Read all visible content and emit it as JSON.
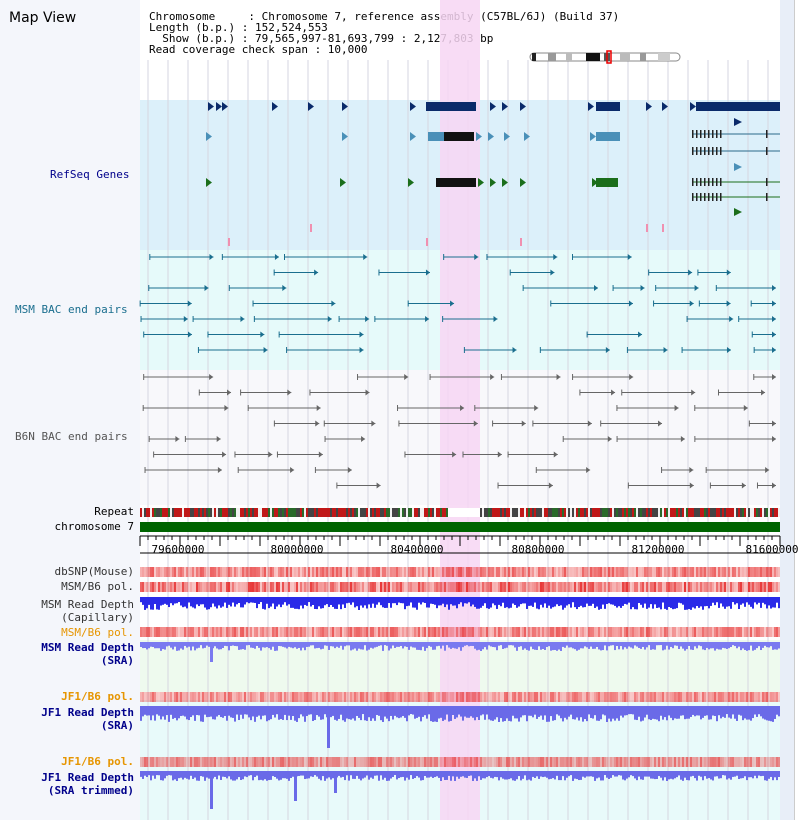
{
  "page": {
    "title": "Map View"
  },
  "header": {
    "lines": [
      {
        "key": "Chromosome",
        "value": "Chromosome 7, reference assembly (C57BL/6J) (Build 37)"
      },
      {
        "key": "Length (b.p.)",
        "value": "152,524,553"
      },
      {
        "key": "Show (b.p.)",
        "value": "79,565,997-81,693,799 : 2,127,803 bp"
      },
      {
        "key": "Read coverage check span",
        "value": "10,000"
      }
    ],
    "text": [
      "Chromosome     : Chromosome 7, reference assembly (C57BL/6J) (Build 37)",
      "Length (b.p.) : 152,524,553",
      "  Show (b.p.) : 79,565,997-81,693,799 : 2,127,803 bp",
      "Read coverage check span : 10,000"
    ]
  },
  "tracks": {
    "refseq": {
      "label": "RefSeq Genes",
      "color": "#00008b"
    },
    "msm_bac": {
      "label": "MSM BAC end pairs",
      "color": "#1a6e8e"
    },
    "b6n_bac": {
      "label": "B6N BAC end pairs",
      "color": "#555555"
    },
    "repeat": {
      "label": "Repeat",
      "color": "#000000"
    },
    "chromosome": {
      "label": "chromosome 7",
      "color": "#000000",
      "bar_color": "#006400"
    },
    "dbsnp": {
      "label": "dbSNP(Mouse)",
      "color": "#333333"
    },
    "msm_b6_pol_1": {
      "label": "MSM/B6 pol.",
      "color": "#333333"
    },
    "msm_read_depth_cap": {
      "label_lines": [
        "MSM Read Depth",
        "(Capillary)"
      ],
      "color": "#333333"
    },
    "msm_b6_pol_2": {
      "label": "MSM/B6 pol.",
      "color": "#e69500"
    },
    "msm_read_depth_sra": {
      "label_lines": [
        "MSM Read Depth",
        "(SRA)"
      ],
      "color": "#00008b"
    },
    "jf1_b6_pol_1": {
      "label": "JF1/B6 pol.",
      "color": "#e69500"
    },
    "jf1_read_depth_sra": {
      "label_lines": [
        "JF1 Read Depth",
        "(SRA)"
      ],
      "color": "#00008b"
    },
    "jf1_b6_pol_2": {
      "label": "JF1/B6 pol.",
      "color": "#e69500"
    },
    "jf1_read_depth_trim": {
      "label_lines": [
        "JF1 Read Depth",
        "(SRA trimmed)"
      ],
      "color": "#00008b"
    }
  },
  "ruler": {
    "ticks": [
      "79600000",
      "80000000",
      "80400000",
      "80800000",
      "81200000",
      "81600000"
    ]
  },
  "colors": {
    "highlight": "#f7d6f3",
    "refseq_bg": "#dcf0fa",
    "bac_bg": "#e6fafa",
    "lower_bg": "#e8fafa"
  }
}
